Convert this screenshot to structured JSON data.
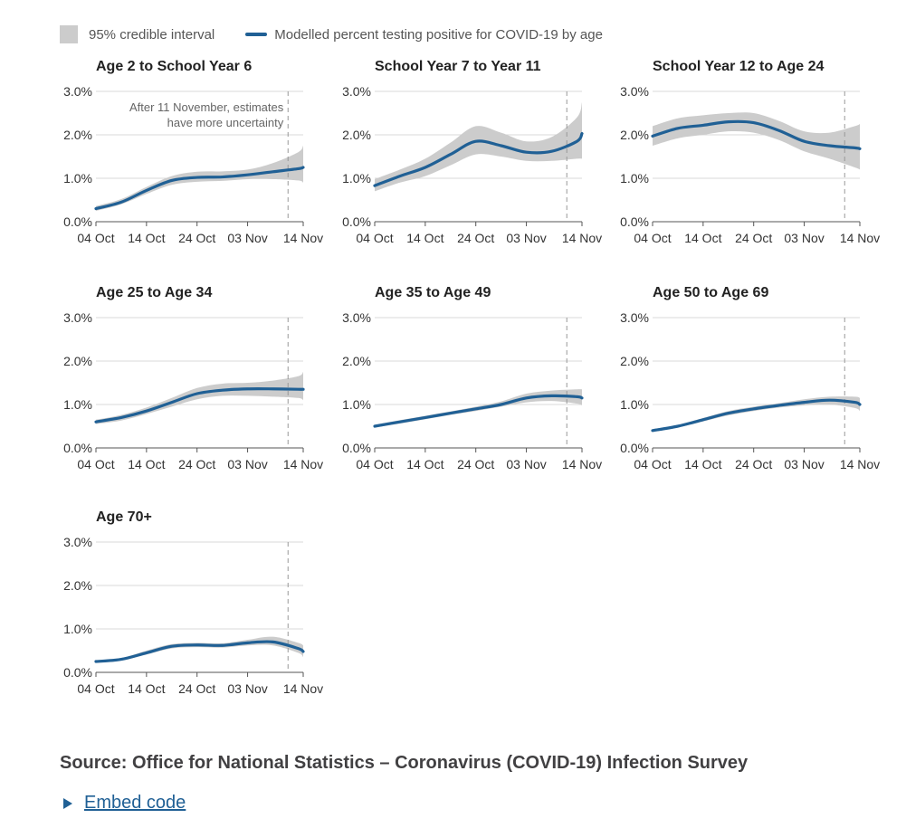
{
  "legend": {
    "interval_label": "95% credible interval",
    "line_label": "Modelled percent testing positive for COVID-19 by age"
  },
  "colors": {
    "line": "#206095",
    "band": "#cccccc",
    "grid": "#d9d9d9",
    "axis": "#555555"
  },
  "chart_data": [
    {
      "type": "line",
      "title": "Age 2 to School Year 6",
      "x": [
        0,
        5,
        10,
        15,
        20,
        25,
        30,
        35,
        40,
        41
      ],
      "values": [
        0.3,
        0.45,
        0.72,
        0.95,
        1.02,
        1.03,
        1.08,
        1.15,
        1.22,
        1.25
      ],
      "lower": [
        0.25,
        0.4,
        0.64,
        0.85,
        0.92,
        0.94,
        0.98,
        0.98,
        0.95,
        0.9
      ],
      "upper": [
        0.36,
        0.52,
        0.8,
        1.05,
        1.15,
        1.16,
        1.2,
        1.35,
        1.6,
        1.75
      ],
      "annotation": [
        "After 11 November, estimates",
        "have more uncertainty"
      ]
    },
    {
      "type": "line",
      "title": "School Year 7 to Year 11",
      "x": [
        0,
        5,
        10,
        15,
        20,
        25,
        30,
        35,
        40,
        41
      ],
      "values": [
        0.83,
        1.05,
        1.25,
        1.55,
        1.85,
        1.75,
        1.6,
        1.62,
        1.85,
        2.03
      ],
      "lower": [
        0.7,
        0.9,
        1.05,
        1.3,
        1.55,
        1.5,
        1.4,
        1.4,
        1.45,
        1.45
      ],
      "upper": [
        0.98,
        1.2,
        1.45,
        1.82,
        2.2,
        2.05,
        1.85,
        1.95,
        2.4,
        2.75
      ]
    },
    {
      "type": "line",
      "title": "School Year 12 to Age 24",
      "x": [
        0,
        5,
        10,
        15,
        20,
        25,
        30,
        35,
        40,
        41
      ],
      "values": [
        1.97,
        2.15,
        2.22,
        2.3,
        2.28,
        2.1,
        1.85,
        1.75,
        1.7,
        1.68
      ],
      "lower": [
        1.75,
        1.92,
        2.0,
        2.08,
        2.05,
        1.88,
        1.62,
        1.45,
        1.25,
        1.2
      ],
      "upper": [
        2.2,
        2.38,
        2.45,
        2.5,
        2.5,
        2.32,
        2.08,
        2.05,
        2.2,
        2.25
      ]
    },
    {
      "type": "line",
      "title": "Age 25 to Age 34",
      "x": [
        0,
        5,
        10,
        15,
        20,
        25,
        30,
        35,
        40,
        41
      ],
      "values": [
        0.6,
        0.7,
        0.85,
        1.05,
        1.25,
        1.33,
        1.36,
        1.36,
        1.35,
        1.35
      ],
      "lower": [
        0.55,
        0.63,
        0.78,
        0.95,
        1.12,
        1.2,
        1.2,
        1.18,
        1.15,
        1.1
      ],
      "upper": [
        0.65,
        0.76,
        0.93,
        1.15,
        1.38,
        1.48,
        1.5,
        1.55,
        1.65,
        1.75
      ]
    },
    {
      "type": "line",
      "title": "Age 35 to Age 49",
      "x": [
        0,
        5,
        10,
        15,
        20,
        25,
        30,
        35,
        40,
        41
      ],
      "values": [
        0.5,
        0.6,
        0.7,
        0.8,
        0.9,
        1.0,
        1.15,
        1.2,
        1.18,
        1.15
      ],
      "lower": [
        0.47,
        0.56,
        0.66,
        0.76,
        0.85,
        0.95,
        1.05,
        1.08,
        1.02,
        0.98
      ],
      "upper": [
        0.53,
        0.64,
        0.74,
        0.84,
        0.95,
        1.07,
        1.25,
        1.32,
        1.35,
        1.35
      ]
    },
    {
      "type": "line",
      "title": "Age 50 to Age 69",
      "x": [
        0,
        5,
        10,
        15,
        20,
        25,
        30,
        35,
        40,
        41
      ],
      "values": [
        0.4,
        0.5,
        0.65,
        0.8,
        0.9,
        0.98,
        1.05,
        1.1,
        1.05,
        1.0
      ],
      "lower": [
        0.37,
        0.47,
        0.61,
        0.75,
        0.85,
        0.93,
        0.98,
        1.0,
        0.92,
        0.85
      ],
      "upper": [
        0.43,
        0.53,
        0.69,
        0.85,
        0.95,
        1.03,
        1.12,
        1.18,
        1.18,
        1.15
      ]
    },
    {
      "type": "line",
      "title": "Age 70+",
      "x": [
        0,
        5,
        10,
        15,
        20,
        25,
        30,
        35,
        40,
        41
      ],
      "values": [
        0.25,
        0.3,
        0.45,
        0.6,
        0.63,
        0.62,
        0.68,
        0.7,
        0.55,
        0.48
      ],
      "lower": [
        0.22,
        0.27,
        0.41,
        0.55,
        0.58,
        0.57,
        0.62,
        0.62,
        0.45,
        0.35
      ],
      "upper": [
        0.28,
        0.33,
        0.5,
        0.65,
        0.68,
        0.67,
        0.75,
        0.82,
        0.68,
        0.62
      ]
    }
  ],
  "axes": {
    "x_ticks": [
      {
        "label": "04 Oct",
        "x": 0
      },
      {
        "label": "14 Oct",
        "x": 10
      },
      {
        "label": "24 Oct",
        "x": 20
      },
      {
        "label": "03 Nov",
        "x": 30
      },
      {
        "label": "14 Nov",
        "x": 41
      }
    ],
    "y_ticks": [
      {
        "label": "0.0%",
        "value": 0
      },
      {
        "label": "1.0%",
        "value": 1
      },
      {
        "label": "2.0%",
        "value": 2
      },
      {
        "label": "3.0%",
        "value": 3
      }
    ],
    "xlim": [
      0,
      41
    ],
    "ylim": [
      0,
      3
    ],
    "uncertainty_marker_x": 38
  },
  "source": "Source: Office for National Statistics – Coronavirus (COVID-19) Infection Survey",
  "embed_label": "Embed code"
}
